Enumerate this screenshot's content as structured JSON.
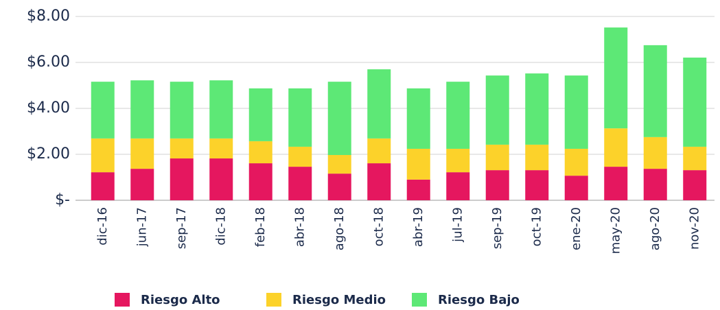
{
  "chart_data": {
    "type": "stacked_bar",
    "categories": [
      "dic-16",
      "jun-17",
      "sep-17",
      "dic-18",
      "feb-18",
      "abr-18",
      "ago-18",
      "oct-18",
      "abr-19",
      "jul-19",
      "sep-19",
      "oct-19",
      "ene-20",
      "may-20",
      "ago-20",
      "nov-20"
    ],
    "series": [
      {
        "name": "Riesgo Alto",
        "color": "#e5175f",
        "values": [
          1.22,
          1.37,
          1.82,
          1.82,
          1.61,
          1.46,
          1.16,
          1.61,
          0.9,
          1.22,
          1.31,
          1.31,
          1.07,
          1.46,
          1.37,
          1.31
        ]
      },
      {
        "name": "Riesgo Medio",
        "color": "#fcd22a",
        "values": [
          1.47,
          1.32,
          0.87,
          0.87,
          0.96,
          0.87,
          0.81,
          1.08,
          1.34,
          1.02,
          1.11,
          1.11,
          1.17,
          1.67,
          1.38,
          1.02
        ]
      },
      {
        "name": "Riesgo Bajo",
        "color": "#5de876",
        "values": [
          2.47,
          2.53,
          2.47,
          2.53,
          2.3,
          2.54,
          3.19,
          3.01,
          2.63,
          2.92,
          3.01,
          3.1,
          3.19,
          4.39,
          4.0,
          3.88
        ]
      }
    ],
    "ylim": [
      0,
      8
    ],
    "yticks": [
      {
        "value": 0,
        "label": "$-"
      },
      {
        "value": 2,
        "label": "$2.00"
      },
      {
        "value": 4,
        "label": "$4.00"
      },
      {
        "value": 6,
        "label": "$6.00"
      },
      {
        "value": 8,
        "label": "$8.00"
      }
    ],
    "grid": true,
    "legend": "bottom"
  }
}
